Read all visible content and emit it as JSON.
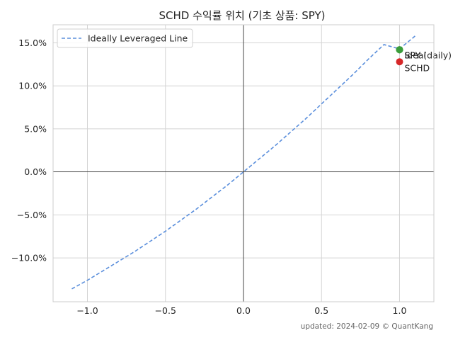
{
  "chart_data": {
    "type": "scatter",
    "title": "SCHD 수익률 위치 (기초 상품: SPY)",
    "xlabel": "",
    "ylabel": "",
    "xlim": [
      -1.22,
      1.22
    ],
    "ylim": [
      -15.1,
      17.1
    ],
    "x_ticks": [
      -1.0,
      -0.5,
      0.0,
      0.5,
      1.0
    ],
    "x_tick_labels": [
      "−1.0",
      "−0.5",
      "0.0",
      "0.5",
      "1.0"
    ],
    "y_ticks": [
      -10,
      -5,
      0,
      5,
      10,
      15
    ],
    "y_tick_labels": [
      "−10.0%",
      "−5.0%",
      "0.0%",
      "5.0%",
      "10.0%",
      "15.0%"
    ],
    "grid": true,
    "legend_position": "top-left",
    "series": [
      {
        "name": "Ideally Leveraged Line",
        "kind": "line",
        "style": "dashed",
        "color": "#5b8fdc",
        "x": [
          -1.1,
          -1.0,
          -0.9,
          -0.8,
          -0.7,
          -0.6,
          -0.5,
          -0.4,
          -0.3,
          -0.2,
          -0.1,
          0.0,
          0.1,
          0.2,
          0.3,
          0.4,
          0.5,
          0.6,
          0.7,
          0.8,
          0.9,
          1.0,
          1.1
        ],
        "y": [
          -13.6,
          -12.6,
          -11.5,
          -10.4,
          -9.3,
          -8.1,
          -6.9,
          -5.6,
          -4.3,
          -2.9,
          -1.5,
          0.0,
          1.5,
          3.0,
          4.6,
          6.2,
          7.9,
          9.6,
          11.3,
          13.1,
          14.8,
          14.3,
          15.8
        ]
      }
    ],
    "points": [
      {
        "label": "SPY",
        "x": 1.0,
        "y": 14.2,
        "color": "#3a9d3a",
        "size": 5
      },
      {
        "label": "Ideal",
        "x": 1.0,
        "y": 14.2,
        "color": "#3a9d3a",
        "size": 5
      },
      {
        "label": "SPY (daily)",
        "x": 1.0,
        "y": 14.2,
        "color": "#3a9d3a",
        "size": 5
      },
      {
        "label": "SCHD",
        "x": 1.0,
        "y": 12.8,
        "color": "#d62728",
        "size": 5
      }
    ]
  },
  "footer": {
    "text": "updated: 2024-02-09 © QuantKang"
  }
}
